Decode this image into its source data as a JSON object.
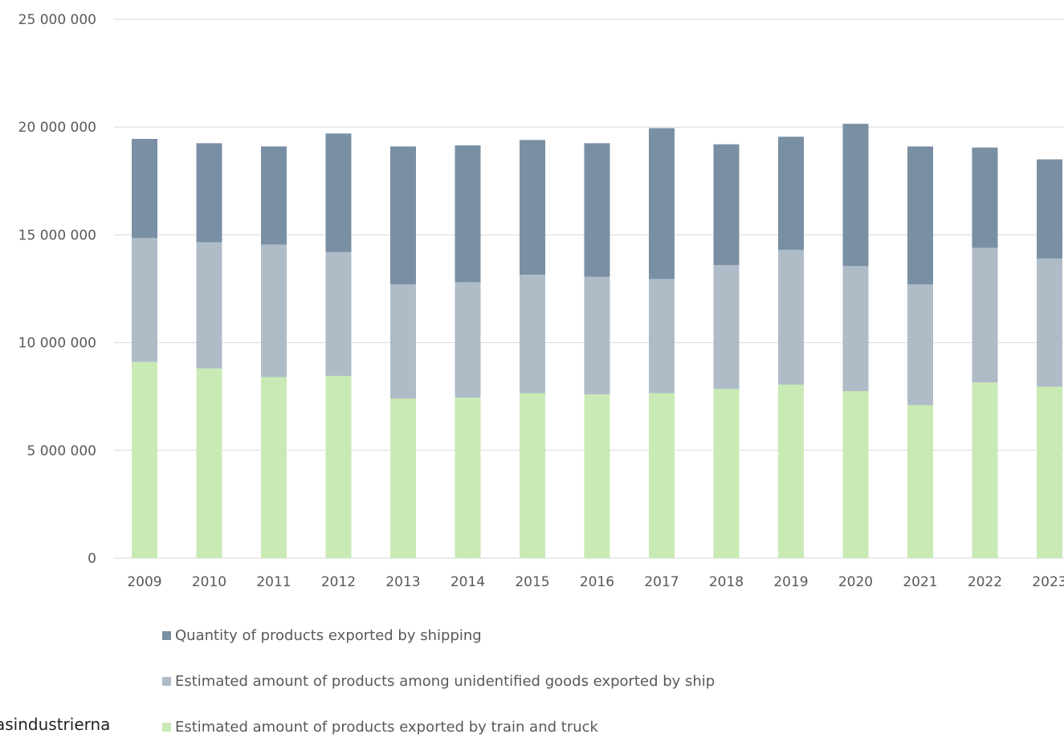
{
  "chart_data": {
    "type": "bar",
    "stacked": true,
    "title": "",
    "xlabel": "",
    "ylabel": "",
    "ylim": [
      0,
      25000000
    ],
    "yticks": [
      0,
      5000000,
      10000000,
      15000000,
      20000000,
      25000000
    ],
    "ytick_labels": [
      "0",
      "5 000 000",
      "10 000 000",
      "15 000 000",
      "20 000 000",
      "25 000 000"
    ],
    "grid": true,
    "legend_position": "bottom",
    "categories": [
      "2009",
      "2010",
      "2011",
      "2012",
      "2013",
      "2014",
      "2015",
      "2016",
      "2017",
      "2018",
      "2019",
      "2020",
      "2021",
      "2022",
      "2023"
    ],
    "series": [
      {
        "name": "Estimated amount of products exported by train and truck",
        "color": "#c9eab4",
        "values": [
          9100000,
          8800000,
          8400000,
          8450000,
          7400000,
          7450000,
          7650000,
          7600000,
          7650000,
          7850000,
          8050000,
          7750000,
          7100000,
          8150000,
          7950000
        ]
      },
      {
        "name": "Estimated amount of products among unidentified goods exported by ship",
        "color": "#afbcc8",
        "values": [
          5750000,
          5850000,
          6150000,
          5750000,
          5300000,
          5350000,
          5500000,
          5450000,
          5300000,
          5750000,
          6250000,
          5800000,
          5600000,
          6250000,
          5950000
        ]
      },
      {
        "name": "Quantity of products exported by shipping",
        "color": "#798fa4",
        "values": [
          4600000,
          4600000,
          4550000,
          5500000,
          6400000,
          6350000,
          6250000,
          6200000,
          7000000,
          5600000,
          5250000,
          6600000,
          6400000,
          4650000,
          4600000
        ]
      }
    ],
    "legend_order": [
      2,
      1,
      0
    ]
  },
  "source": "asindustrierna"
}
